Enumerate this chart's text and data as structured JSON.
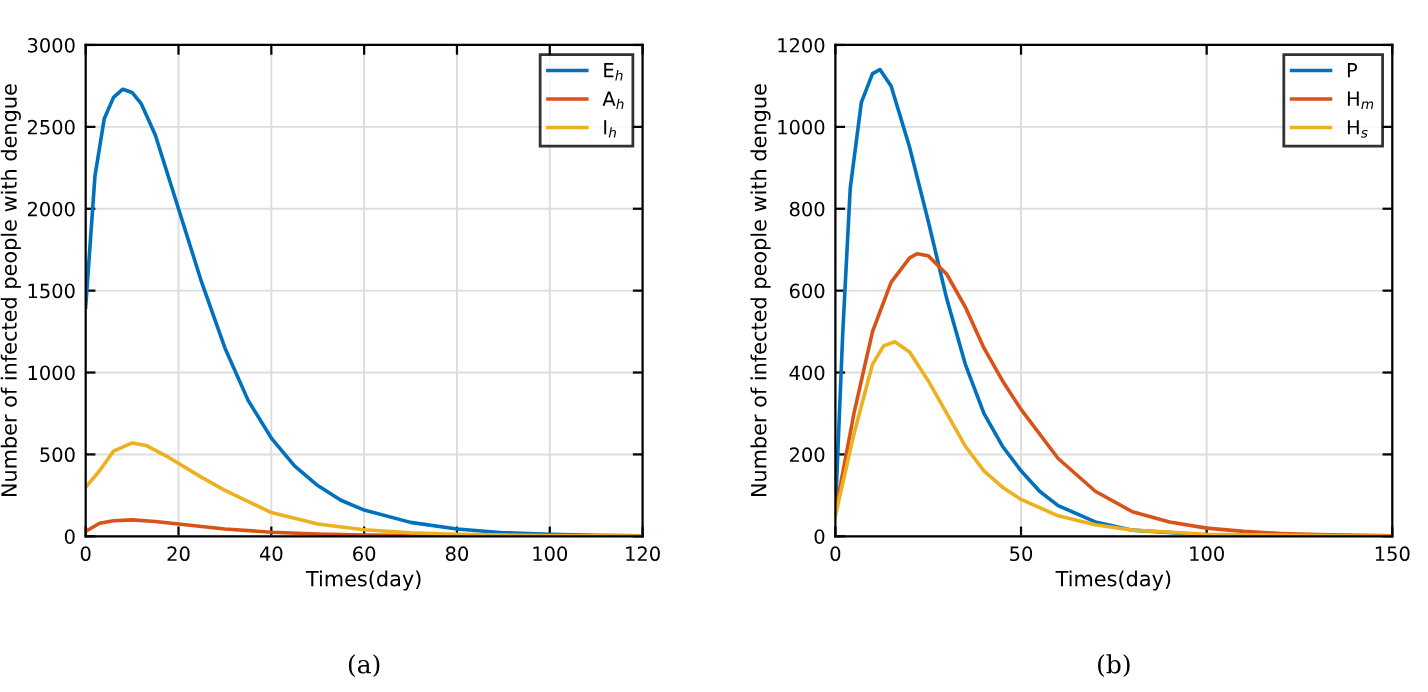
{
  "chart_data": [
    {
      "type": "line",
      "xlabel": "Times(day)",
      "ylabel": "Number of infected people with dengue",
      "annotations": [
        "(a)"
      ],
      "xlim": [
        0,
        120
      ],
      "ylim": [
        0,
        3000
      ],
      "xticks": [
        0,
        20,
        40,
        60,
        80,
        100,
        120
      ],
      "yticks": [
        0,
        500,
        1000,
        1500,
        2000,
        2500,
        3000
      ],
      "grid": true,
      "legend": "top right",
      "series": [
        {
          "name": "E$_{h}$",
          "color": "#0072bd",
          "x": [
            0,
            2,
            4,
            6,
            8,
            10,
            12,
            15,
            20,
            25,
            30,
            35,
            40,
            45,
            50,
            55,
            60,
            70,
            80,
            90,
            100,
            110,
            120
          ],
          "values": [
            1400,
            2200,
            2550,
            2680,
            2730,
            2710,
            2640,
            2450,
            2000,
            1550,
            1150,
            830,
            600,
            430,
            310,
            220,
            160,
            85,
            45,
            22,
            12,
            6,
            3
          ]
        },
        {
          "name": "A$_{h}$",
          "color": "#d95319",
          "x": [
            0,
            3,
            6,
            10,
            15,
            20,
            30,
            40,
            50,
            60,
            80,
            100,
            120
          ],
          "values": [
            30,
            80,
            95,
            100,
            90,
            75,
            45,
            25,
            14,
            8,
            3,
            1,
            0
          ]
        },
        {
          "name": "I$_{h}$",
          "color": "#edb120",
          "x": [
            0,
            3,
            6,
            10,
            13,
            18,
            25,
            30,
            40,
            50,
            60,
            70,
            80,
            100,
            120
          ],
          "values": [
            300,
            400,
            520,
            570,
            555,
            480,
            360,
            280,
            145,
            75,
            40,
            22,
            12,
            4,
            1
          ]
        }
      ]
    },
    {
      "type": "line",
      "xlabel": "Times(day)",
      "ylabel": "Number of infected people with dengue",
      "annotations": [
        "(b)"
      ],
      "xlim": [
        0,
        150
      ],
      "ylim": [
        0,
        1200
      ],
      "xticks": [
        0,
        50,
        100,
        150
      ],
      "yticks": [
        0,
        200,
        400,
        600,
        800,
        1000,
        1200
      ],
      "grid": true,
      "legend": "top right",
      "series": [
        {
          "name": "P",
          "color": "#0072bd",
          "x": [
            0,
            2,
            4,
            7,
            10,
            12,
            15,
            20,
            25,
            30,
            35,
            40,
            45,
            50,
            55,
            60,
            70,
            80,
            100,
            120,
            150
          ],
          "values": [
            60,
            500,
            850,
            1060,
            1130,
            1140,
            1100,
            950,
            770,
            580,
            420,
            300,
            220,
            160,
            110,
            75,
            35,
            15,
            3,
            1,
            0
          ]
        },
        {
          "name": "H$_{m}$",
          "color": "#d95319",
          "x": [
            0,
            5,
            10,
            15,
            20,
            22,
            25,
            30,
            35,
            40,
            45,
            50,
            60,
            70,
            80,
            90,
            100,
            110,
            120,
            130,
            150
          ],
          "values": [
            60,
            300,
            500,
            620,
            680,
            690,
            685,
            640,
            560,
            460,
            380,
            310,
            190,
            110,
            60,
            35,
            20,
            12,
            7,
            4,
            1
          ]
        },
        {
          "name": "H$_{s}$",
          "color": "#edb120",
          "x": [
            0,
            5,
            10,
            13,
            16,
            20,
            25,
            30,
            35,
            40,
            45,
            50,
            60,
            70,
            80,
            100,
            150
          ],
          "values": [
            50,
            250,
            420,
            465,
            475,
            450,
            380,
            300,
            220,
            160,
            120,
            90,
            50,
            28,
            15,
            5,
            0
          ]
        }
      ]
    }
  ]
}
